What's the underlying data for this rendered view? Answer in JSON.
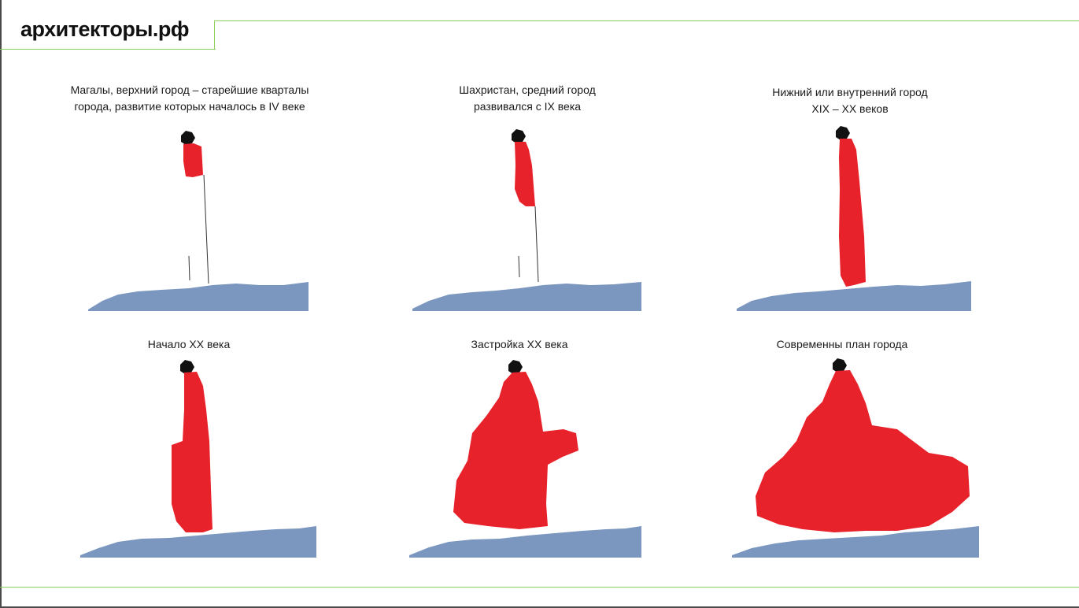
{
  "logo": "архитекторы.рф",
  "panels": [
    {
      "caption_line1": "Магалы, верхний город – старейшие кварталы",
      "caption_line2": "города, развитие которых началось в IV веке"
    },
    {
      "caption_line1": "Шахристан, средний город",
      "caption_line2": "развивался с IX века"
    },
    {
      "caption_line1": "Нижний или внутренний город",
      "caption_line2": "XIX – XX веков"
    },
    {
      "caption_line1": "Начало XX века",
      "caption_line2": ""
    },
    {
      "caption_line1": "Застройка XX века",
      "caption_line2": ""
    },
    {
      "caption_line1": "Современны план города",
      "caption_line2": ""
    }
  ],
  "colors": {
    "accent_line": "#8ccf5a",
    "development": "#e8222b",
    "sea": "#7b97bf",
    "fortress": "#111111"
  }
}
